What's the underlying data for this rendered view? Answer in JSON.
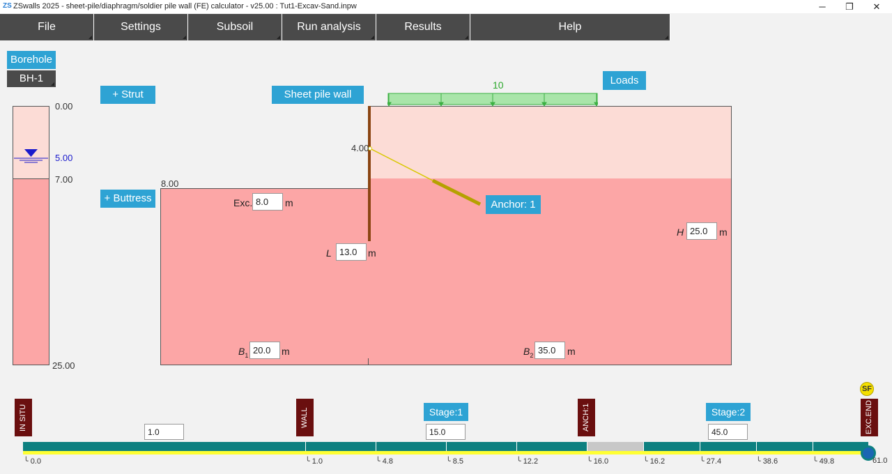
{
  "window": {
    "app_icon": "ZS",
    "title": "ZSwalls 2025 - sheet-pile/diaphragm/soldier pile wall (FE) calculator - v25.00 : Tut1-Excav-Sand.inpw",
    "minimize_icon": "─",
    "restore_icon": "❐",
    "close_icon": "✕"
  },
  "menu": {
    "items": [
      "File",
      "Settings",
      "Subsoil",
      "Run analysis",
      "Results",
      "Help"
    ]
  },
  "borehole": {
    "button_label": "Borehole",
    "selected": "BH-1",
    "top_level": "0.00",
    "water_level": "5.00",
    "layer_boundary": "7.00",
    "bottom_level": "25.00",
    "water_icon": "water-table-icon"
  },
  "model": {
    "strut_button": "+ Strut",
    "buttress_button": "+ Buttress",
    "wall_button": "Sheet pile wall",
    "loads_button": "Loads",
    "load_value": "10",
    "anchor_level": "4.00",
    "excavation_level": "8.00",
    "exc_label": "Exc.",
    "exc_value": "8.0",
    "exc_unit": "m",
    "L_label": "L",
    "L_value": "13.0",
    "L_unit": "m",
    "H_label": "H",
    "H_value": "25.0",
    "H_unit": "m",
    "B1_label": "B",
    "B1_sub": "1",
    "B1_value": "20.0",
    "B1_unit": "m",
    "B2_label": "B",
    "B2_sub": "2",
    "B2_value": "35.0",
    "B2_unit": "m",
    "anchor_button": "Anchor: 1",
    "colors": {
      "upper_soil": "#fcdcd6",
      "lower_soil": "#fca6a6",
      "wall": "#8b4513",
      "anchor": "#b5a100",
      "load": "#a9e5a9",
      "water": "#1a1acc"
    }
  },
  "timeline": {
    "markers": [
      "IN SITU",
      "WALL",
      "ANCH:1",
      "EXC.END"
    ],
    "stage1_button": "Stage:1",
    "stage2_button": "Stage:2",
    "field1": "1.0",
    "field2": "15.0",
    "field3": "45.0",
    "sf_badge": "SF",
    "ticks": [
      "0.0",
      "1.0",
      "4.8",
      "8.5",
      "12.2",
      "16.0",
      "16.2",
      "27.4",
      "38.6",
      "49.8",
      "61.0"
    ],
    "colors": {
      "bar": "#0d8080",
      "gap": "#c8c8c8",
      "baseline": "#ffff33"
    }
  }
}
